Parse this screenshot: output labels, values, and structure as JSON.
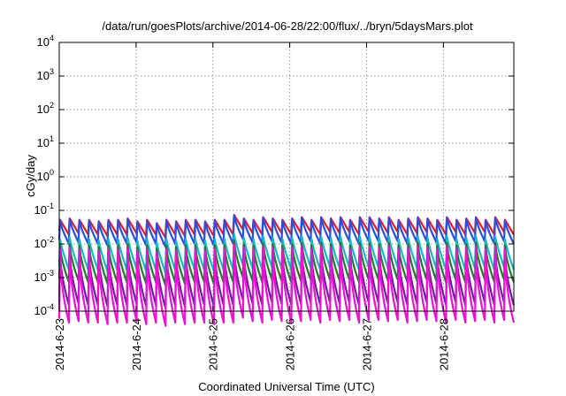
{
  "chart_data": {
    "type": "line",
    "title": "/data/run/goesPlots/archive/2014-06-28/22:00/flux/../bryn/5daysMars.plot",
    "xlabel": "Coordinated Universal Time (UTC)",
    "ylabel": "cGy/day",
    "y_scale": "log",
    "ylim": [
      0.0001,
      10000
    ],
    "y_ticks": [
      {
        "value": 0.0001,
        "base": "10",
        "exp": "-4"
      },
      {
        "value": 0.001,
        "base": "10",
        "exp": "-3"
      },
      {
        "value": 0.01,
        "base": "10",
        "exp": "-2"
      },
      {
        "value": 0.1,
        "base": "10",
        "exp": "-1"
      },
      {
        "value": 1,
        "base": "10",
        "exp": "0"
      },
      {
        "value": 10,
        "base": "10",
        "exp": "1"
      },
      {
        "value": 100,
        "base": "10",
        "exp": "2"
      },
      {
        "value": 1000,
        "base": "10",
        "exp": "3"
      },
      {
        "value": 10000,
        "base": "10",
        "exp": "4"
      }
    ],
    "xlim": [
      "2014-06-23T00:00",
      "2014-06-28T22:00"
    ],
    "x_ticks": [
      {
        "value": "2014-06-23T00:00",
        "label": "2014-6-23"
      },
      {
        "value": "2014-06-24T00:00",
        "label": "2014-6-24"
      },
      {
        "value": "2014-06-25T00:00",
        "label": "2014-6-25"
      },
      {
        "value": "2014-06-26T00:00",
        "label": "2014-6-26"
      },
      {
        "value": "2014-06-27T00:00",
        "label": "2014-6-27"
      },
      {
        "value": "2014-06-28T00:00",
        "label": "2014-6-28"
      }
    ],
    "grid": true,
    "legend": "none",
    "pattern": "sawtooth, period ≈ 3 h: sharp rise to peak then decay; 6 overlapping curves",
    "cycle_peaks_top_curve": [
      0.05,
      0.055,
      0.05,
      0.05,
      0.045,
      0.05,
      0.05,
      0.055,
      0.045,
      0.05,
      0.04,
      0.05,
      0.045,
      0.05,
      0.05,
      0.045,
      0.05,
      0.05,
      0.07,
      0.055,
      0.05,
      0.06,
      0.055,
      0.05,
      0.055,
      0.06,
      0.05,
      0.06,
      0.055,
      0.06,
      0.05,
      0.06,
      0.06,
      0.055,
      0.06,
      0.05,
      0.055,
      0.06,
      0.055,
      0.05,
      0.06,
      0.05,
      0.055,
      0.06,
      0.05,
      0.06,
      0.05
    ],
    "series": [
      {
        "color": "#e8192c",
        "peak_factor": 1.05,
        "min_factor": 0.36,
        "decay_power": 1.0
      },
      {
        "color": "#2a4fe0",
        "peak_factor": 1.0,
        "min_factor": 0.2,
        "decay_power": 1.3
      },
      {
        "color": "#18b8c8",
        "peak_factor": 0.28,
        "min_factor": 0.12,
        "decay_power": 1.2
      },
      {
        "color": "#1f7a2a",
        "peak_factor": 0.18,
        "min_factor": 0.08,
        "decay_power": 1.5
      },
      {
        "color": "#6a1fa0",
        "peak_factor": 0.1,
        "min_factor": 0.03,
        "decay_power": 1.6
      },
      {
        "color": "#ee10d4",
        "peak_factor": 0.14,
        "min_factor": 0.0065,
        "decay_power": 2.0
      }
    ]
  }
}
